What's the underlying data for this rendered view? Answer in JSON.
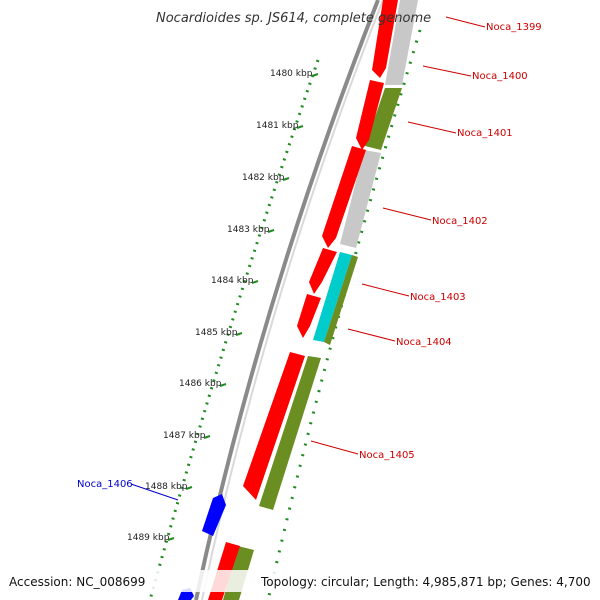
{
  "header": {
    "title": "Nocardioides sp. JS614, complete genome"
  },
  "footer": {
    "accession": "Accession: NC_008699",
    "summary": "Topology: circular; Length: 4,985,871 bp; Genes: 4,700"
  },
  "colors": {
    "backbone": "#808080",
    "ruler": "#228B22",
    "forward_cds": "#ff0000",
    "reverse_cds": "#6b8e23",
    "other_feature": "#c0c0c0",
    "rna_feature": "#00cccc",
    "highlight_gene": "#0000ff",
    "label_red": "#cc0000",
    "label_blue": "#0000cc"
  },
  "ruler": {
    "ticks": [
      "1480 kbp",
      "1481 kbp",
      "1482 kbp",
      "1483 kbp",
      "1484 kbp",
      "1485 kbp",
      "1486 kbp",
      "1487 kbp",
      "1488 kbp",
      "1489 kbp"
    ]
  },
  "gene_labels": [
    {
      "text": "Noca_1399",
      "color": "red"
    },
    {
      "text": "Noca_1400",
      "color": "red"
    },
    {
      "text": "Noca_1401",
      "color": "red"
    },
    {
      "text": "Noca_1402",
      "color": "red"
    },
    {
      "text": "Noca_1403",
      "color": "red"
    },
    {
      "text": "Noca_1404",
      "color": "red"
    },
    {
      "text": "Noca_1405",
      "color": "red"
    },
    {
      "text": "Noca_1406",
      "color": "blue"
    }
  ]
}
